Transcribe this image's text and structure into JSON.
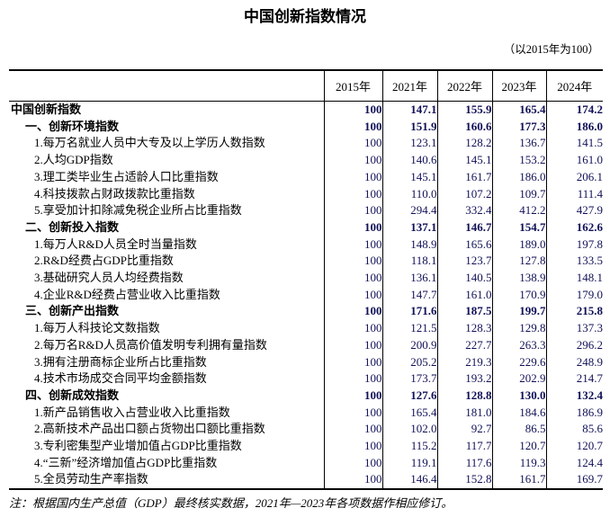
{
  "title": "中国创新指数情况",
  "base_note": "（以2015年为100）",
  "table": {
    "columns": [
      "2015年",
      "2021年",
      "2022年",
      "2023年",
      "2024年"
    ],
    "rows": [
      {
        "label": "中国创新指数",
        "level": 0,
        "bold": true,
        "values": [
          "100",
          "147.1",
          "155.9",
          "165.4",
          "174.2"
        ]
      },
      {
        "label": "一、创新环境指数",
        "level": 1,
        "bold": true,
        "values": [
          "100",
          "151.9",
          "160.6",
          "177.3",
          "186.0"
        ]
      },
      {
        "label": "1.每万名就业人员中大专及以上学历人数指数",
        "level": 2,
        "bold": false,
        "values": [
          "100",
          "123.1",
          "128.2",
          "136.7",
          "141.5"
        ]
      },
      {
        "label": "2.人均GDP指数",
        "level": 2,
        "bold": false,
        "values": [
          "100",
          "140.6",
          "145.1",
          "153.2",
          "161.0"
        ]
      },
      {
        "label": "3.理工类毕业生占适龄人口比重指数",
        "level": 2,
        "bold": false,
        "values": [
          "100",
          "145.1",
          "161.7",
          "186.0",
          "206.1"
        ]
      },
      {
        "label": "4.科技拨款占财政拨款比重指数",
        "level": 2,
        "bold": false,
        "values": [
          "100",
          "110.0",
          "107.2",
          "109.7",
          "111.4"
        ]
      },
      {
        "label": "5.享受加计扣除减免税企业所占比重指数",
        "level": 2,
        "bold": false,
        "values": [
          "100",
          "294.4",
          "332.4",
          "412.2",
          "427.9"
        ]
      },
      {
        "label": "二、创新投入指数",
        "level": 1,
        "bold": true,
        "values": [
          "100",
          "137.1",
          "146.7",
          "154.7",
          "162.6"
        ]
      },
      {
        "label": "1.每万人R&D人员全时当量指数",
        "level": 2,
        "bold": false,
        "values": [
          "100",
          "148.9",
          "165.6",
          "189.0",
          "197.8"
        ]
      },
      {
        "label": "2.R&D经费占GDP比重指数",
        "level": 2,
        "bold": false,
        "values": [
          "100",
          "118.1",
          "123.7",
          "127.8",
          "133.5"
        ]
      },
      {
        "label": "3.基础研究人员人均经费指数",
        "level": 2,
        "bold": false,
        "values": [
          "100",
          "136.1",
          "140.5",
          "138.9",
          "148.1"
        ]
      },
      {
        "label": "4.企业R&D经费占营业收入比重指数",
        "level": 2,
        "bold": false,
        "values": [
          "100",
          "147.7",
          "161.0",
          "170.9",
          "179.0"
        ]
      },
      {
        "label": "三、创新产出指数",
        "level": 1,
        "bold": true,
        "values": [
          "100",
          "171.6",
          "187.5",
          "199.7",
          "215.8"
        ]
      },
      {
        "label": "1.每万人科技论文数指数",
        "level": 2,
        "bold": false,
        "values": [
          "100",
          "121.5",
          "128.3",
          "129.8",
          "137.3"
        ]
      },
      {
        "label": "2.每万名R&D人员高价值发明专利拥有量指数",
        "level": 2,
        "bold": false,
        "values": [
          "100",
          "200.9",
          "227.7",
          "263.3",
          "296.2"
        ]
      },
      {
        "label": "3.拥有注册商标企业所占比重指数",
        "level": 2,
        "bold": false,
        "values": [
          "100",
          "205.2",
          "219.3",
          "229.6",
          "248.9"
        ]
      },
      {
        "label": "4.技术市场成交合同平均金额指数",
        "level": 2,
        "bold": false,
        "values": [
          "100",
          "173.7",
          "193.2",
          "202.9",
          "214.7"
        ]
      },
      {
        "label": "四、创新成效指数",
        "level": 1,
        "bold": true,
        "values": [
          "100",
          "127.6",
          "128.8",
          "130.0",
          "132.4"
        ]
      },
      {
        "label": "1.新产品销售收入占营业收入比重指数",
        "level": 2,
        "bold": false,
        "values": [
          "100",
          "165.4",
          "181.0",
          "184.6",
          "186.9"
        ]
      },
      {
        "label": "2.高新技术产品出口额占货物出口额比重指数",
        "level": 2,
        "bold": false,
        "values": [
          "100",
          "102.0",
          "92.7",
          "86.5",
          "85.6"
        ]
      },
      {
        "label": "3.专利密集型产业增加值占GDP比重指数",
        "level": 2,
        "bold": false,
        "values": [
          "100",
          "115.2",
          "117.7",
          "120.7",
          "120.7"
        ]
      },
      {
        "label": "4.“三新”经济增加值占GDP比重指数",
        "level": 2,
        "bold": false,
        "values": [
          "100",
          "119.1",
          "117.6",
          "119.3",
          "124.4"
        ]
      },
      {
        "label": "5.全员劳动生产率指数",
        "level": 2,
        "bold": false,
        "values": [
          "100",
          "146.4",
          "152.8",
          "161.7",
          "169.7"
        ]
      }
    ]
  },
  "footnote": "注：根据国内生产总值（GDP）最终核实数据，2021年—2023年各项数据作相应修订。"
}
